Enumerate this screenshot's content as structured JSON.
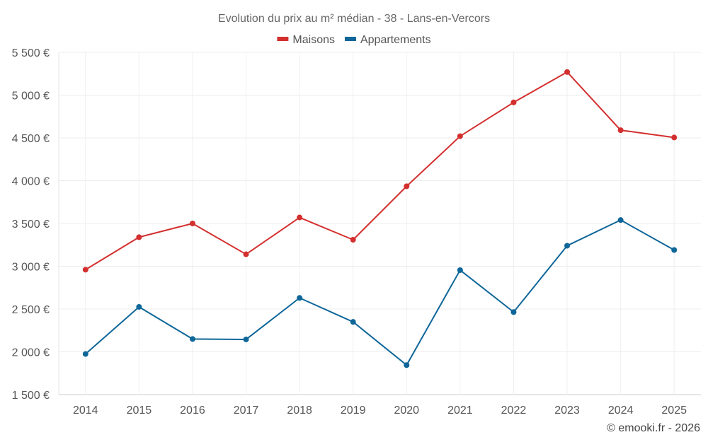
{
  "chart_data": {
    "type": "line",
    "title": "Evolution du prix au m² médian - 38 - Lans-en-Vercors",
    "categories": [
      "2014",
      "2015",
      "2016",
      "2017",
      "2018",
      "2019",
      "2020",
      "2021",
      "2022",
      "2023",
      "2024",
      "2025"
    ],
    "series": [
      {
        "name": "Maisons",
        "color": "#d32f2f",
        "values": [
          2960,
          3340,
          3500,
          3140,
          3570,
          3310,
          3935,
          4520,
          4915,
          5270,
          4590,
          4505
        ]
      },
      {
        "name": "Appartements",
        "color": "#0e6699",
        "values": [
          1975,
          2525,
          2150,
          2145,
          2630,
          2350,
          1845,
          2955,
          2465,
          3240,
          3540,
          3190
        ]
      }
    ],
    "ylim": [
      1500,
      5500
    ],
    "yticks": [
      1500,
      2000,
      2500,
      3000,
      3500,
      4000,
      4500,
      5000,
      5500
    ],
    "ytick_labels": [
      "1 500 €",
      "2 000 €",
      "2 500 €",
      "3 000 €",
      "3 500 €",
      "4 000 €",
      "4 500 €",
      "5 000 €",
      "5 500 €"
    ],
    "xlabel": "",
    "ylabel": "",
    "grid": true,
    "legend_position": "top-center"
  },
  "credit": "© emooki.fr - 2026"
}
